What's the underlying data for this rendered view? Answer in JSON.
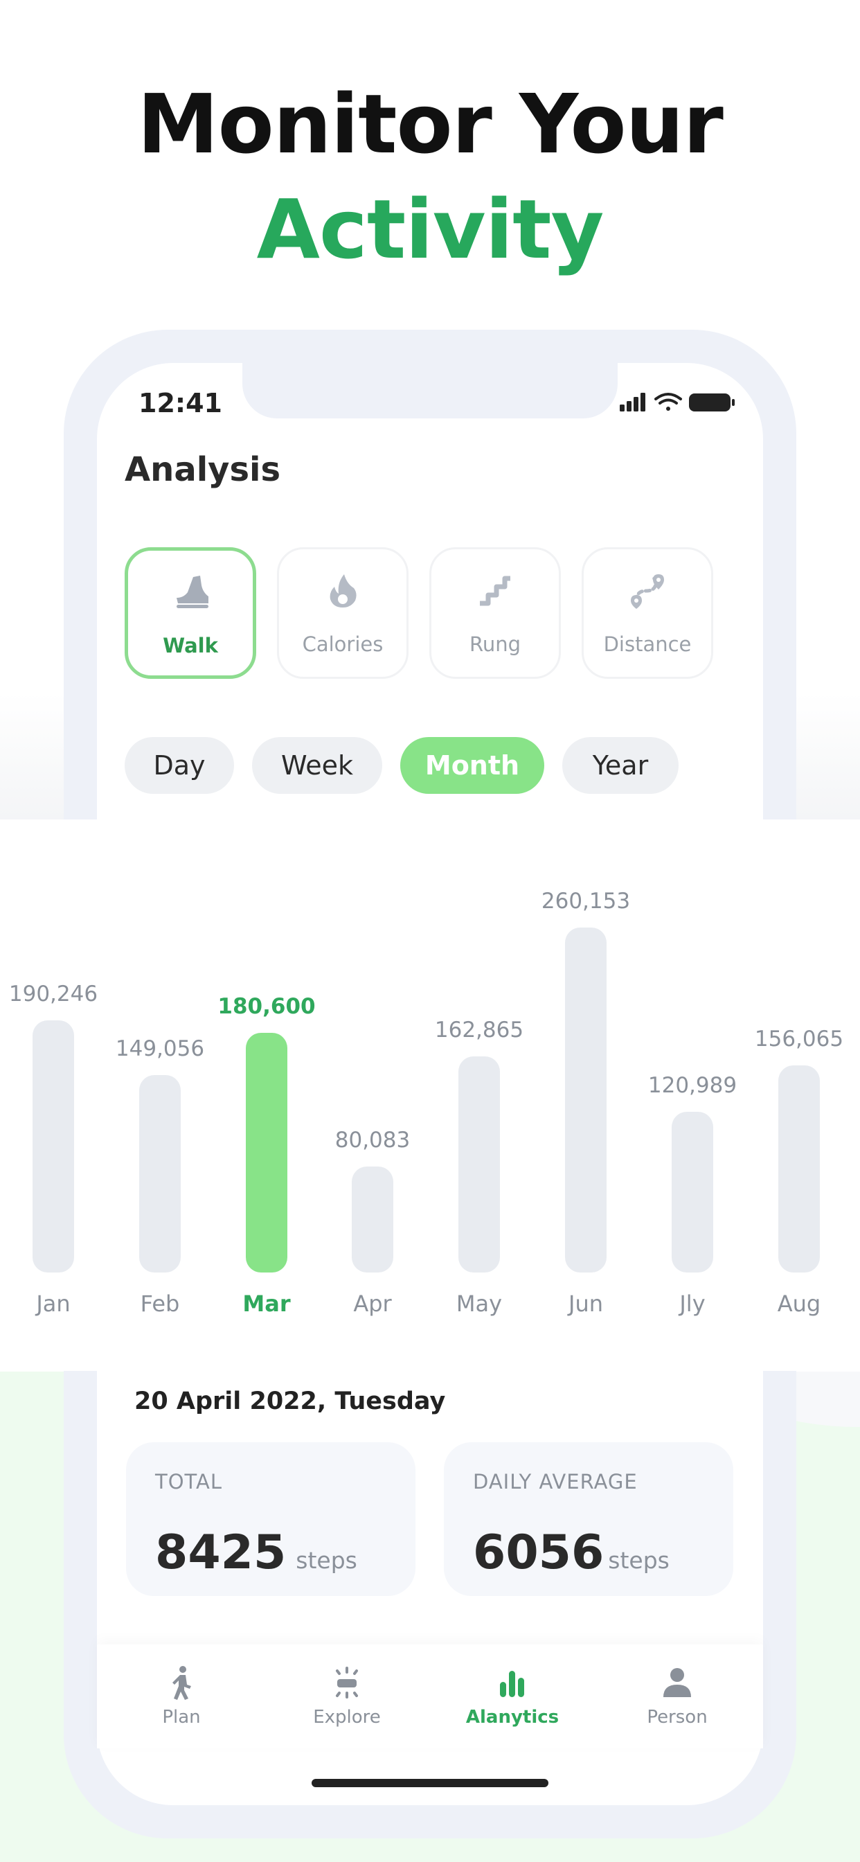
{
  "headline": {
    "line1": "Monitor Your",
    "line2": "Activity"
  },
  "status_bar": {
    "time": "12:41"
  },
  "screen": {
    "title": "Analysis"
  },
  "activity_cards": [
    {
      "label": "Walk",
      "icon": "shoe-icon",
      "active": true
    },
    {
      "label": "Calories",
      "icon": "flame-icon",
      "active": false
    },
    {
      "label": "Rung",
      "icon": "stairs-icon",
      "active": false
    },
    {
      "label": "Distance",
      "icon": "route-icon",
      "active": false
    }
  ],
  "periods": [
    {
      "label": "Day",
      "active": false
    },
    {
      "label": "Week",
      "active": false
    },
    {
      "label": "Month",
      "active": true
    },
    {
      "label": "Year",
      "active": false
    }
  ],
  "chart_data": {
    "type": "bar",
    "categories": [
      "Jan",
      "Feb",
      "Mar",
      "Apr",
      "May",
      "Jun",
      "Jly",
      "Aug"
    ],
    "values": [
      190246,
      149056,
      180600,
      80083,
      162865,
      260153,
      120989,
      156065
    ],
    "value_labels": [
      "190,246",
      "149,056",
      "180,600",
      "80,083",
      "162,865",
      "260,153",
      "120,989",
      "156,065"
    ],
    "highlighted": "Mar",
    "colors": {
      "bar": "#e8ebf0",
      "highlight": "#88e388",
      "highlight_text": "#2fa85c"
    }
  },
  "summary": {
    "date": "20 April 2022, Tuesday",
    "total": {
      "label": "TOTAL",
      "value": "8425",
      "unit": "steps"
    },
    "daily_average": {
      "label": "DAILY AVERAGE",
      "value": "6056",
      "unit": "steps"
    }
  },
  "tabbar": [
    {
      "label": "Plan",
      "icon": "walking-person-icon",
      "active": false
    },
    {
      "label": "Explore",
      "icon": "explore-icon",
      "active": false
    },
    {
      "label": "Alanytics",
      "icon": "analytics-icon",
      "active": true
    },
    {
      "label": "Person",
      "icon": "person-icon",
      "active": false
    }
  ],
  "colors": {
    "accent": "#27a85c",
    "accent_light": "#88e388",
    "text_dark": "#2a2a2a",
    "text_muted": "#8a9099"
  }
}
